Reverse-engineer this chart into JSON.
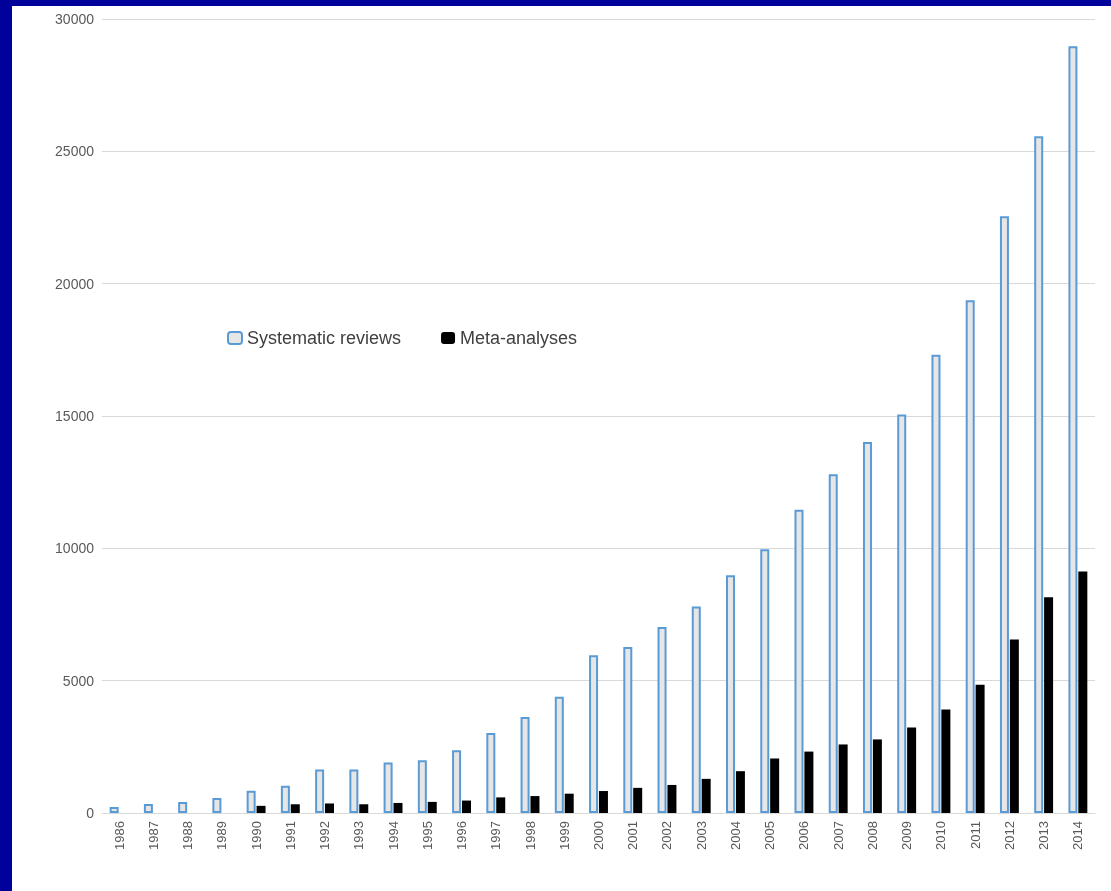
{
  "chart_data": {
    "type": "bar",
    "categories": [
      "1986",
      "1987",
      "1988",
      "1989",
      "1990",
      "1991",
      "1992",
      "1993",
      "1994",
      "1995",
      "1996",
      "1997",
      "1998",
      "1999",
      "2000",
      "2001",
      "2002",
      "2003",
      "2004",
      "2005",
      "2006",
      "2007",
      "2008",
      "2009",
      "2010",
      "2011",
      "2012",
      "2013",
      "2014"
    ],
    "series": [
      {
        "name": "Systematic reviews",
        "color": "#e7e6e6",
        "values": [
          230,
          340,
          420,
          570,
          840,
          1030,
          1640,
          1640,
          1910,
          1990,
          2370,
          3020,
          3630,
          4390,
          5960,
          6270,
          7030,
          7800,
          8980,
          9970,
          11460,
          12800,
          14020,
          15060,
          17310,
          19370,
          22550,
          25570,
          28970
        ]
      },
      {
        "name": "Meta-analyses",
        "color": "#000000",
        "values": [
          null,
          null,
          null,
          null,
          270,
          330,
          360,
          330,
          380,
          420,
          470,
          590,
          640,
          730,
          830,
          950,
          1060,
          1290,
          1580,
          2060,
          2320,
          2590,
          2780,
          3230,
          3910,
          4850,
          6560,
          8150,
          9120
        ]
      }
    ],
    "ylim": [
      0,
      30000
    ],
    "yticks": [
      0,
      5000,
      10000,
      15000,
      20000,
      25000,
      30000
    ],
    "grid": "y",
    "legend": "left"
  }
}
